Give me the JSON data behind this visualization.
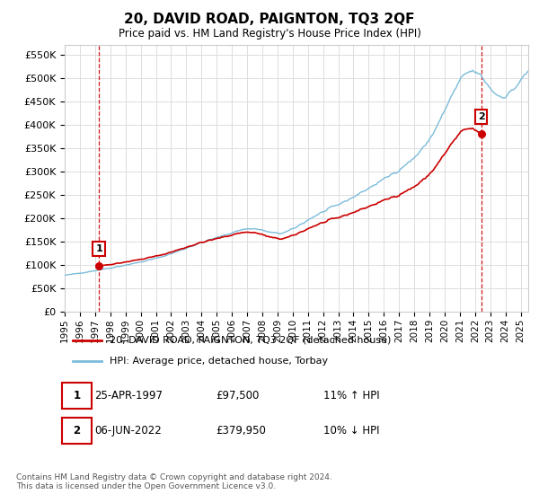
{
  "title": "20, DAVID ROAD, PAIGNTON, TQ3 2QF",
  "subtitle": "Price paid vs. HM Land Registry's House Price Index (HPI)",
  "hpi_label": "HPI: Average price, detached house, Torbay",
  "property_label": "20, DAVID ROAD, PAIGNTON, TQ3 2QF (detached house)",
  "transaction1_date": "25-APR-1997",
  "transaction1_price": 97500,
  "transaction1_hpi": "11% ↑ HPI",
  "transaction2_date": "06-JUN-2022",
  "transaction2_price": 379950,
  "transaction2_hpi": "10% ↓ HPI",
  "ylim": [
    0,
    570000
  ],
  "yticks": [
    0,
    50000,
    100000,
    150000,
    200000,
    250000,
    300000,
    350000,
    400000,
    450000,
    500000,
    550000
  ],
  "hpi_color": "#7bbcdb",
  "property_color": "#cc0000",
  "dashed_line_color": "#cc0000",
  "background_color": "#ffffff",
  "grid_color": "#dddddd",
  "footer": "Contains HM Land Registry data © Crown copyright and database right 2024.\nThis data is licensed under the Open Government Licence v3.0."
}
